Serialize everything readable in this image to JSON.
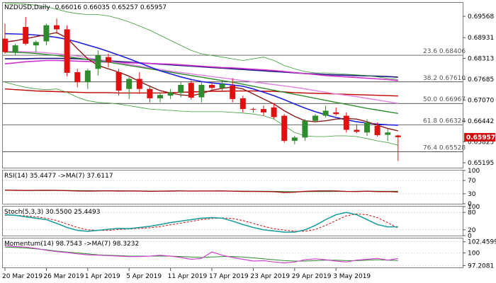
{
  "chart_data": {
    "type": "candlestick",
    "title": "NZDUSD,Daily",
    "ohlc_readout": "0.66016 0.66035 0.65257 0.65957",
    "price_panel": {
      "ylim": [
        0.6505,
        0.6997
      ],
      "y_ticks": [
        "0.69568",
        "0.68931",
        "0.68313",
        "0.67685",
        "0.67070",
        "0.66442",
        "0.65825",
        "0.65195"
      ],
      "last_price": "0.65957",
      "candles": [
        {
          "o": 0.689,
          "h": 0.6935,
          "l": 0.6845,
          "c": 0.685
        },
        {
          "o": 0.685,
          "h": 0.6875,
          "l": 0.684,
          "c": 0.687
        },
        {
          "o": 0.6925,
          "h": 0.6955,
          "l": 0.687,
          "c": 0.6875
        },
        {
          "o": 0.687,
          "h": 0.6885,
          "l": 0.685,
          "c": 0.688
        },
        {
          "o": 0.6882,
          "h": 0.6935,
          "l": 0.687,
          "c": 0.693
        },
        {
          "o": 0.693,
          "h": 0.695,
          "l": 0.6905,
          "c": 0.6918
        },
        {
          "o": 0.6918,
          "h": 0.693,
          "l": 0.6778,
          "c": 0.6788
        },
        {
          "o": 0.679,
          "h": 0.68,
          "l": 0.6745,
          "c": 0.676
        },
        {
          "o": 0.676,
          "h": 0.68,
          "l": 0.674,
          "c": 0.6795
        },
        {
          "o": 0.68,
          "h": 0.6855,
          "l": 0.678,
          "c": 0.684
        },
        {
          "o": 0.6835,
          "h": 0.6845,
          "l": 0.6805,
          "c": 0.682
        },
        {
          "o": 0.679,
          "h": 0.68,
          "l": 0.672,
          "c": 0.6735
        },
        {
          "o": 0.674,
          "h": 0.6775,
          "l": 0.671,
          "c": 0.677
        },
        {
          "o": 0.677,
          "h": 0.679,
          "l": 0.6725,
          "c": 0.674
        },
        {
          "o": 0.674,
          "h": 0.675,
          "l": 0.67,
          "c": 0.6712
        },
        {
          "o": 0.6712,
          "h": 0.673,
          "l": 0.67,
          "c": 0.6722
        },
        {
          "o": 0.672,
          "h": 0.674,
          "l": 0.671,
          "c": 0.673
        },
        {
          "o": 0.6728,
          "h": 0.676,
          "l": 0.6715,
          "c": 0.6752
        },
        {
          "o": 0.6758,
          "h": 0.6765,
          "l": 0.6708,
          "c": 0.6714
        },
        {
          "o": 0.6715,
          "h": 0.676,
          "l": 0.67,
          "c": 0.6752
        },
        {
          "o": 0.6752,
          "h": 0.676,
          "l": 0.6738,
          "c": 0.6743
        },
        {
          "o": 0.6743,
          "h": 0.6765,
          "l": 0.6735,
          "c": 0.6755
        },
        {
          "o": 0.675,
          "h": 0.6772,
          "l": 0.67,
          "c": 0.671
        },
        {
          "o": 0.6712,
          "h": 0.672,
          "l": 0.667,
          "c": 0.668
        },
        {
          "o": 0.668,
          "h": 0.6685,
          "l": 0.667,
          "c": 0.6678
        },
        {
          "o": 0.668,
          "h": 0.669,
          "l": 0.666,
          "c": 0.667
        },
        {
          "o": 0.6685,
          "h": 0.6695,
          "l": 0.665,
          "c": 0.6656
        },
        {
          "o": 0.666,
          "h": 0.6665,
          "l": 0.658,
          "c": 0.6585
        },
        {
          "o": 0.6585,
          "h": 0.66,
          "l": 0.6575,
          "c": 0.6595
        },
        {
          "o": 0.6595,
          "h": 0.665,
          "l": 0.6585,
          "c": 0.6645
        },
        {
          "o": 0.6645,
          "h": 0.6665,
          "l": 0.664,
          "c": 0.666
        },
        {
          "o": 0.666,
          "h": 0.669,
          "l": 0.6655,
          "c": 0.6675
        },
        {
          "o": 0.667,
          "h": 0.6685,
          "l": 0.666,
          "c": 0.6665
        },
        {
          "o": 0.666,
          "h": 0.667,
          "l": 0.661,
          "c": 0.6618
        },
        {
          "o": 0.6618,
          "h": 0.6635,
          "l": 0.6608,
          "c": 0.6612
        },
        {
          "o": 0.661,
          "h": 0.665,
          "l": 0.66,
          "c": 0.664
        },
        {
          "o": 0.663,
          "h": 0.664,
          "l": 0.6598,
          "c": 0.6602
        },
        {
          "o": 0.6603,
          "h": 0.662,
          "l": 0.6585,
          "c": 0.661
        },
        {
          "o": 0.6601,
          "h": 0.6603,
          "l": 0.6525,
          "c": 0.6596
        }
      ],
      "overlays": [
        {
          "kind": "line",
          "color": "#c00000",
          "width": 1.4,
          "values": [
            0.674,
            0.6738,
            0.6736,
            0.6734,
            0.6733,
            0.6732,
            0.6731,
            0.673,
            0.6729,
            0.6729,
            0.6729,
            0.6728,
            0.6728,
            0.6728,
            0.6728,
            0.6728,
            0.6729,
            0.673,
            0.6731,
            0.6732,
            0.6733,
            0.6733,
            0.6734,
            0.6734,
            0.6734,
            0.6733,
            0.6733,
            0.6731,
            0.6729,
            0.6728,
            0.6727,
            0.6726,
            0.6725,
            0.6724,
            0.6723,
            0.6722,
            0.6721,
            0.672,
            0.6719
          ]
        },
        {
          "kind": "line",
          "color": "#1a1a80",
          "width": 1.6,
          "values": [
            0.683,
            0.683,
            0.683,
            0.6831,
            0.6831,
            0.6831,
            0.6831,
            0.683,
            0.6828,
            0.6826,
            0.6824,
            0.6822,
            0.682,
            0.6818,
            0.6816,
            0.6814,
            0.6812,
            0.681,
            0.6808,
            0.6806,
            0.6804,
            0.6802,
            0.68,
            0.6798,
            0.6796,
            0.6794,
            0.6792,
            0.679,
            0.6788,
            0.6786,
            0.6785,
            0.6783,
            0.6782,
            0.6781,
            0.678,
            0.6779,
            0.6778,
            0.6777,
            0.6775
          ]
        },
        {
          "kind": "line",
          "color": "#cc33cc",
          "width": 1.6,
          "values": [
            0.6815,
            0.6818,
            0.6821,
            0.6823,
            0.6825,
            0.6825,
            0.6824,
            0.6823,
            0.6822,
            0.6821,
            0.682,
            0.6819,
            0.6818,
            0.6817,
            0.6816,
            0.6815,
            0.6814,
            0.6812,
            0.681,
            0.6808,
            0.6806,
            0.6804,
            0.6803,
            0.6801,
            0.6799,
            0.6797,
            0.6795,
            0.6792,
            0.6789,
            0.6786,
            0.6783,
            0.678,
            0.6778,
            0.6776,
            0.6774,
            0.6772,
            0.677,
            0.6768,
            0.6765
          ]
        },
        {
          "kind": "line",
          "color": "#e080e0",
          "width": 1.4,
          "values": [
            0.6852,
            0.6852,
            0.6851,
            0.685,
            0.6848,
            0.6845,
            0.6842,
            0.6838,
            0.6833,
            0.6828,
            0.6823,
            0.6818,
            0.6813,
            0.6808,
            0.6803,
            0.6798,
            0.6793,
            0.6789,
            0.6785,
            0.6781,
            0.6777,
            0.6773,
            0.6769,
            0.6765,
            0.6761,
            0.6757,
            0.6753,
            0.6749,
            0.6745,
            0.674,
            0.6735,
            0.673,
            0.6725,
            0.6721,
            0.6717,
            0.6712,
            0.6707,
            0.6702,
            0.6697
          ]
        },
        {
          "kind": "line",
          "color": "#2e8b2e",
          "width": 1.4,
          "values": [
            0.685,
            0.6849,
            0.6848,
            0.6846,
            0.6843,
            0.684,
            0.6836,
            0.6832,
            0.6828,
            0.6824,
            0.682,
            0.6815,
            0.681,
            0.6805,
            0.68,
            0.6795,
            0.679,
            0.6785,
            0.678,
            0.6775,
            0.677,
            0.6765,
            0.676,
            0.6754,
            0.6748,
            0.6742,
            0.6736,
            0.673,
            0.6724,
            0.6718,
            0.6712,
            0.6706,
            0.67,
            0.6694,
            0.6688,
            0.6682,
            0.6677,
            0.6672,
            0.6667
          ]
        },
        {
          "kind": "line",
          "color": "#2020e0",
          "width": 1.6,
          "values": [
            0.6905,
            0.6904,
            0.6903,
            0.6901,
            0.6898,
            0.6894,
            0.6888,
            0.688,
            0.6871,
            0.6862,
            0.6852,
            0.6841,
            0.683,
            0.6818,
            0.6806,
            0.6794,
            0.6785,
            0.6776,
            0.6768,
            0.6762,
            0.6758,
            0.6755,
            0.6752,
            0.6748,
            0.674,
            0.673,
            0.672,
            0.6708,
            0.6695,
            0.6683,
            0.6672,
            0.6663,
            0.6655,
            0.6648,
            0.6642,
            0.6638,
            0.6635,
            0.6633,
            0.6632
          ]
        },
        {
          "kind": "line",
          "color": "#8b1a1a",
          "width": 1.4,
          "values": [
            0.688,
            0.6884,
            0.689,
            0.6896,
            0.6902,
            0.6908,
            0.6892,
            0.686,
            0.683,
            0.681,
            0.68,
            0.679,
            0.6778,
            0.6762,
            0.6748,
            0.6735,
            0.6728,
            0.6722,
            0.672,
            0.6726,
            0.6736,
            0.6742,
            0.6746,
            0.674,
            0.6725,
            0.671,
            0.6695,
            0.6675,
            0.6658,
            0.6645,
            0.6642,
            0.6645,
            0.665,
            0.6652,
            0.665,
            0.6642,
            0.6632,
            0.6622,
            0.6615
          ]
        },
        {
          "kind": "band",
          "color": "#3a9b3a",
          "width": 0.8,
          "values": [
            0.6995,
            0.6995,
            0.6993,
            0.699,
            0.6985,
            0.6978,
            0.697,
            0.6965,
            0.6962,
            0.6962,
            0.6958,
            0.695,
            0.694,
            0.6928,
            0.6915,
            0.69,
            0.6885,
            0.687,
            0.6855,
            0.6845,
            0.684,
            0.6835,
            0.683,
            0.6825,
            0.683,
            0.6835,
            0.6825,
            0.681,
            0.68,
            0.6792,
            0.6788,
            0.6788,
            0.6786,
            0.6784,
            0.6782,
            0.678,
            0.6776,
            0.6772,
            0.6768
          ]
        },
        {
          "kind": "band",
          "color": "#3a9b3a",
          "width": 0.8,
          "values": [
            0.676,
            0.6752,
            0.6745,
            0.674,
            0.6738,
            0.674,
            0.673,
            0.6715,
            0.6705,
            0.67,
            0.6698,
            0.6695,
            0.669,
            0.6685,
            0.668,
            0.6678,
            0.6676,
            0.6674,
            0.6672,
            0.6672,
            0.6672,
            0.6672,
            0.667,
            0.6668,
            0.6665,
            0.666,
            0.665,
            0.663,
            0.661,
            0.66,
            0.6598,
            0.6598,
            0.66,
            0.66,
            0.6598,
            0.6592,
            0.6585,
            0.658,
            0.6572
          ]
        }
      ],
      "fib_levels": [
        {
          "label": "23.6",
          "value": 0.68406
        },
        {
          "label": "38.2",
          "value": 0.6761
        },
        {
          "label": "50.0",
          "value": 0.66967
        },
        {
          "label": "61.8",
          "value": 0.66324
        },
        {
          "label": "76.4",
          "value": 0.65528
        }
      ]
    },
    "rsi_panel": {
      "title": "RSI(14) 35.4477  ->MA(7) 37.6117",
      "ylim": [
        0,
        100
      ],
      "y_ticks": [
        "100",
        "70",
        "30",
        "0"
      ],
      "rsi_values": [
        41.0,
        40.5,
        40.0,
        40.2,
        40.5,
        40.3,
        39.5,
        38.5,
        38.0,
        38.5,
        39.0,
        38.2,
        38.5,
        38.0,
        37.5,
        37.8,
        38.2,
        38.8,
        38.0,
        38.5,
        38.6,
        38.8,
        37.9,
        37.2,
        37.0,
        36.8,
        36.3,
        34.0,
        35.0,
        37.5,
        38.2,
        38.8,
        38.4,
        37.0,
        36.8,
        37.8,
        36.5,
        36.8,
        35.4
      ],
      "ma_values": [
        40.5,
        40.4,
        40.2,
        40.1,
        40.1,
        40.2,
        40.0,
        39.6,
        39.3,
        39.1,
        38.9,
        38.8,
        38.7,
        38.6,
        38.4,
        38.2,
        38.1,
        38.2,
        38.2,
        38.2,
        38.3,
        38.4,
        38.3,
        38.1,
        37.9,
        37.6,
        37.3,
        36.8,
        36.4,
        36.4,
        36.6,
        36.8,
        37.1,
        37.3,
        37.5,
        37.7,
        37.6,
        37.5,
        37.6
      ]
    },
    "stoch_panel": {
      "title": "Stoch(5,3,3) 30.5500 25.4493",
      "ylim": [
        0,
        100
      ],
      "y_ticks": [
        "100",
        "80",
        "20",
        "0"
      ],
      "k_values": [
        72,
        70,
        65,
        60,
        55,
        42,
        28,
        18,
        15,
        18,
        22,
        25,
        24,
        28,
        32,
        38,
        45,
        50,
        55,
        60,
        62,
        60,
        50,
        38,
        28,
        20,
        16,
        12,
        12,
        20,
        35,
        55,
        72,
        80,
        72,
        55,
        38,
        30,
        30.55
      ],
      "d_values": [
        70,
        70,
        68,
        65,
        60,
        52,
        40,
        28,
        20,
        18,
        18,
        21,
        23,
        25,
        27,
        31,
        37,
        43,
        49,
        55,
        59,
        61,
        59,
        52,
        42,
        32,
        24,
        19,
        15,
        15,
        21,
        35,
        52,
        68,
        75,
        72,
        62,
        45,
        25.45
      ]
    },
    "momentum_panel": {
      "title": "Momentum(14) 98.7543  ->MA(7) 98.3232",
      "ylim": [
        96.8,
        103.2
      ],
      "y_ticks": [
        "102.4599",
        "100",
        "97.2081"
      ],
      "momentum_values": [
        101.6,
        101.4,
        101.3,
        101.0,
        100.6,
        100.3,
        100.1,
        99.8,
        99.6,
        99.5,
        99.4,
        99.3,
        99.2,
        99.2,
        99.3,
        99.5,
        99.3,
        99.0,
        98.6,
        98.8,
        100.2,
        99.5,
        99.0,
        98.6,
        98.2,
        98.3,
        98.0,
        97.8,
        98.0,
        98.5,
        98.7,
        98.5,
        98.2,
        98.0,
        98.4,
        98.6,
        98.8,
        98.4,
        98.75
      ],
      "ma_values": [
        101.3,
        101.2,
        101.1,
        100.9,
        100.7,
        100.4,
        100.2,
        100.0,
        99.8,
        99.6,
        99.5,
        99.4,
        99.3,
        99.3,
        99.3,
        99.3,
        99.3,
        99.2,
        99.1,
        99.0,
        99.1,
        99.2,
        99.2,
        99.1,
        98.9,
        98.7,
        98.5,
        98.3,
        98.2,
        98.2,
        98.3,
        98.4,
        98.4,
        98.3,
        98.3,
        98.4,
        98.5,
        98.4,
        98.32
      ]
    },
    "x_tick_labels": [
      {
        "label": "20 Mar 2019",
        "index": 0
      },
      {
        "label": "26 Mar 2019",
        "index": 4
      },
      {
        "label": "1 Apr 2019",
        "index": 8
      },
      {
        "label": "5 Apr 2019",
        "index": 12
      },
      {
        "label": "11 Apr 2019",
        "index": 16
      },
      {
        "label": "17 Apr 2019",
        "index": 20
      },
      {
        "label": "23 Apr 2019",
        "index": 24
      },
      {
        "label": "29 Apr 2019",
        "index": 28
      },
      {
        "label": "3 May 2019",
        "index": 32
      }
    ],
    "colors": {
      "bull": "#2e8b2e",
      "bear": "#e01010",
      "rsi_line": "#a01010",
      "rsi_ma": "#2e8b2e",
      "stoch_k": "#20a0a0",
      "stoch_d": "#c01010",
      "momentum_line": "#cc44cc",
      "momentum_ma": "#2e8b2e",
      "last_price_bg": "#d01010",
      "fib_line": "#1a1a1a"
    }
  }
}
